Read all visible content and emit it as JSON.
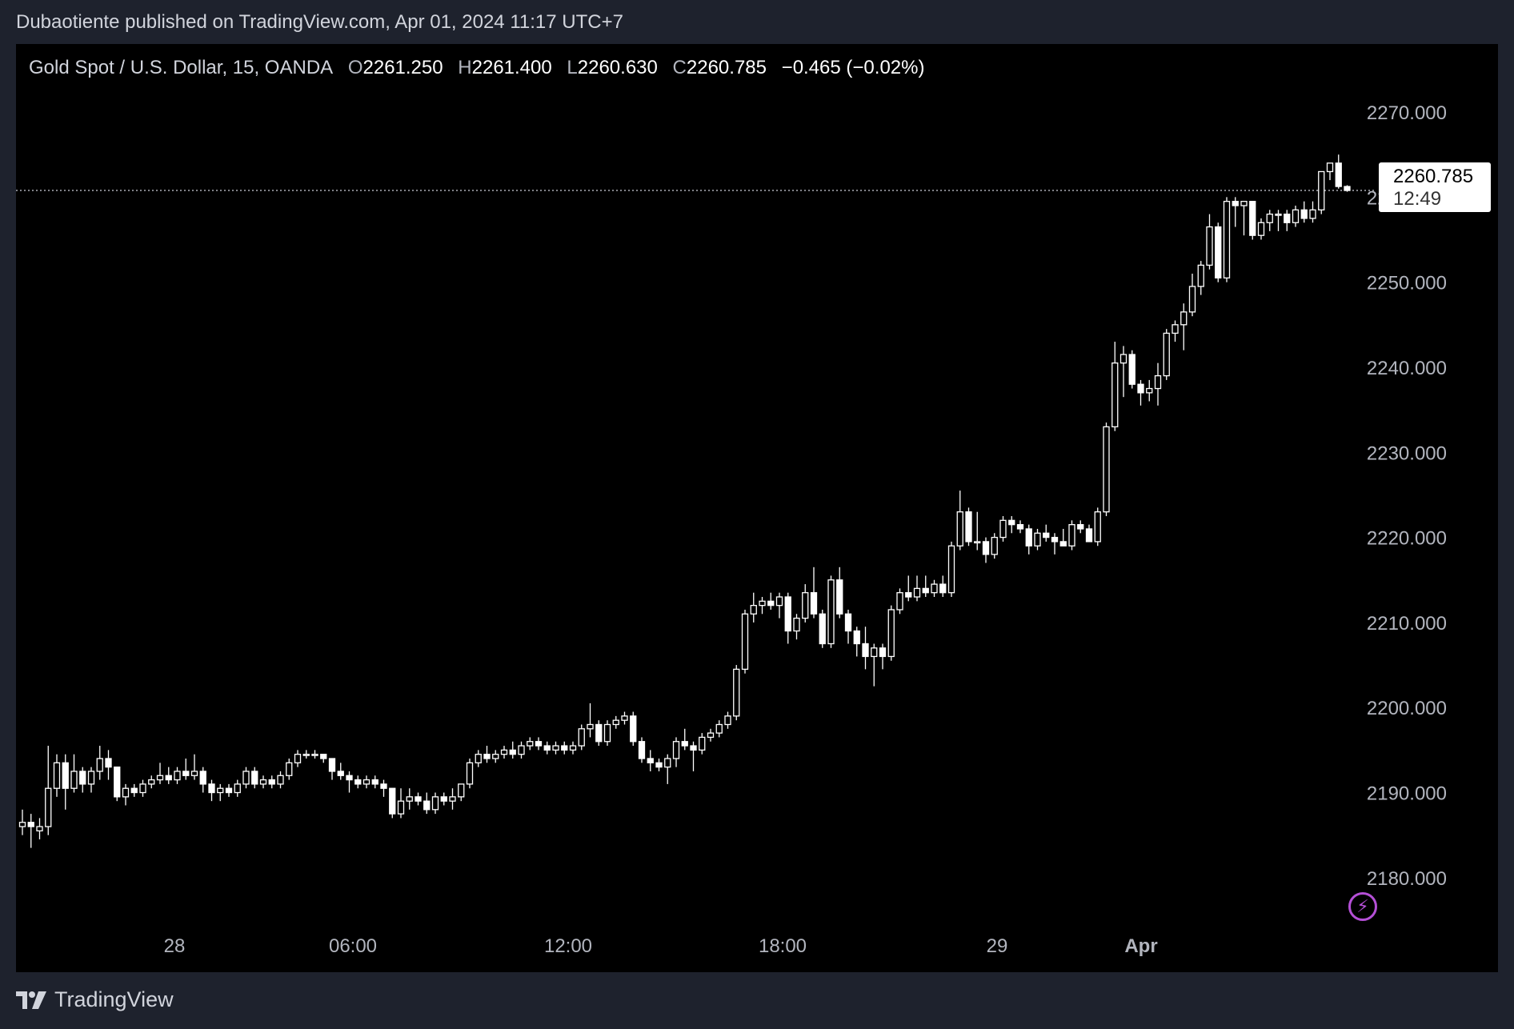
{
  "header": {
    "publish_text": "Dubaotiente published on TradingView.com, Apr 01, 2024 11:17 UTC+7"
  },
  "legend": {
    "symbol": "Gold Spot / U.S. Dollar, 15, OANDA",
    "o_label": "O",
    "o_value": "2261.250",
    "h_label": "H",
    "h_value": "2261.400",
    "l_label": "L",
    "l_value": "2260.630",
    "c_label": "C",
    "c_value": "2260.785",
    "change": "−0.465 (−0.02%)"
  },
  "price_tag": {
    "price": "2260.785",
    "countdown": "12:49"
  },
  "footer": {
    "brand": "TradingView"
  },
  "icons": {
    "alert": "lightning-bolt-icon",
    "logo": "tradingview-logo-icon"
  },
  "colors": {
    "background": "#000000",
    "frame": "#1e222d",
    "candle": "#ffffff",
    "axis_text": "#b2b5be",
    "alert_accent": "#b44fd6"
  },
  "chart_data": {
    "type": "candlestick",
    "y_ticks": [
      "2270.000",
      "2260.000",
      "2250.000",
      "2240.000",
      "2230.000",
      "2220.000",
      "2210.000",
      "2200.000",
      "2190.000",
      "2180.000"
    ],
    "x_ticks": [
      "28",
      "06:00",
      "12:00",
      "18:00",
      "29",
      "Apr"
    ],
    "ylim": [
      2175,
      2278
    ],
    "last_price": 2260.785,
    "candles": [
      [
        2186.0,
        2188.0,
        2185.0,
        2186.5
      ],
      [
        2186.5,
        2187.5,
        2183.5,
        2186.0
      ],
      [
        2185.5,
        2187.0,
        2184.5,
        2186.0
      ],
      [
        2186.0,
        2195.5,
        2185.0,
        2190.5
      ],
      [
        2190.5,
        2194.5,
        2189.5,
        2193.5
      ],
      [
        2193.5,
        2194.5,
        2188.0,
        2190.5
      ],
      [
        2190.5,
        2194.5,
        2190.0,
        2192.5
      ],
      [
        2192.5,
        2193.0,
        2190.0,
        2191.0
      ],
      [
        2191.0,
        2193.0,
        2190.0,
        2192.5
      ],
      [
        2192.5,
        2195.5,
        2191.5,
        2194.0
      ],
      [
        2194.0,
        2195.0,
        2191.5,
        2193.0
      ],
      [
        2193.0,
        2193.0,
        2189.0,
        2189.5
      ],
      [
        2189.5,
        2191.0,
        2188.5,
        2190.5
      ],
      [
        2190.5,
        2191.0,
        2189.5,
        2190.0
      ],
      [
        2190.0,
        2191.5,
        2189.5,
        2191.0
      ],
      [
        2191.0,
        2192.0,
        2190.5,
        2191.5
      ],
      [
        2191.5,
        2193.5,
        2191.0,
        2192.0
      ],
      [
        2192.0,
        2193.0,
        2191.0,
        2191.5
      ],
      [
        2191.5,
        2193.0,
        2191.0,
        2192.5
      ],
      [
        2192.5,
        2194.0,
        2191.5,
        2192.0
      ],
      [
        2192.0,
        2194.5,
        2191.5,
        2192.5
      ],
      [
        2192.5,
        2193.0,
        2190.0,
        2191.0
      ],
      [
        2191.0,
        2191.5,
        2189.0,
        2190.0
      ],
      [
        2190.0,
        2191.0,
        2189.0,
        2190.5
      ],
      [
        2190.5,
        2191.0,
        2189.5,
        2190.0
      ],
      [
        2190.0,
        2191.5,
        2189.5,
        2191.0
      ],
      [
        2191.0,
        2193.0,
        2190.5,
        2192.5
      ],
      [
        2192.5,
        2193.0,
        2190.5,
        2191.0
      ],
      [
        2191.0,
        2192.0,
        2190.5,
        2191.5
      ],
      [
        2191.5,
        2192.0,
        2190.5,
        2191.0
      ],
      [
        2191.0,
        2192.5,
        2190.5,
        2192.0
      ],
      [
        2192.0,
        2194.0,
        2191.5,
        2193.5
      ],
      [
        2193.5,
        2195.0,
        2193.0,
        2194.5
      ],
      [
        2194.5,
        2195.0,
        2194.0,
        2194.5
      ],
      [
        2194.5,
        2195.0,
        2194.0,
        2194.5
      ],
      [
        2194.5,
        2194.5,
        2193.5,
        2194.0
      ],
      [
        2194.0,
        2194.0,
        2191.5,
        2192.5
      ],
      [
        2192.5,
        2193.5,
        2191.5,
        2192.0
      ],
      [
        2192.0,
        2192.5,
        2190.0,
        2191.5
      ],
      [
        2191.5,
        2192.0,
        2190.5,
        2191.0
      ],
      [
        2191.0,
        2192.0,
        2190.5,
        2191.5
      ],
      [
        2191.5,
        2192.0,
        2190.5,
        2191.0
      ],
      [
        2191.0,
        2191.5,
        2189.5,
        2190.5
      ],
      [
        2190.5,
        2190.5,
        2187.0,
        2187.5
      ],
      [
        2187.5,
        2190.5,
        2187.0,
        2189.0
      ],
      [
        2189.0,
        2190.5,
        2188.0,
        2189.5
      ],
      [
        2189.5,
        2190.0,
        2188.5,
        2189.0
      ],
      [
        2189.0,
        2190.0,
        2187.5,
        2188.0
      ],
      [
        2188.0,
        2190.0,
        2187.5,
        2189.5
      ],
      [
        2189.5,
        2190.0,
        2188.5,
        2189.0
      ],
      [
        2189.0,
        2190.5,
        2188.0,
        2189.5
      ],
      [
        2189.5,
        2191.0,
        2189.0,
        2191.0
      ],
      [
        2191.0,
        2194.0,
        2190.5,
        2193.5
      ],
      [
        2193.5,
        2195.0,
        2193.0,
        2194.5
      ],
      [
        2194.5,
        2195.5,
        2193.5,
        2194.0
      ],
      [
        2194.0,
        2195.0,
        2193.5,
        2194.5
      ],
      [
        2194.5,
        2195.5,
        2194.0,
        2195.0
      ],
      [
        2195.0,
        2196.0,
        2194.0,
        2194.5
      ],
      [
        2194.5,
        2196.0,
        2194.0,
        2195.5
      ],
      [
        2195.5,
        2196.5,
        2195.0,
        2196.0
      ],
      [
        2196.0,
        2196.5,
        2195.0,
        2195.5
      ],
      [
        2195.5,
        2196.0,
        2194.5,
        2195.0
      ],
      [
        2195.0,
        2196.0,
        2194.5,
        2195.5
      ],
      [
        2195.5,
        2196.0,
        2194.5,
        2195.0
      ],
      [
        2195.0,
        2196.0,
        2194.5,
        2195.5
      ],
      [
        2195.5,
        2198.0,
        2195.0,
        2197.5
      ],
      [
        2197.5,
        2200.5,
        2196.5,
        2198.0
      ],
      [
        2198.0,
        2198.5,
        2195.5,
        2196.0
      ],
      [
        2196.0,
        2198.5,
        2195.5,
        2198.0
      ],
      [
        2198.0,
        2199.0,
        2197.5,
        2198.5
      ],
      [
        2198.5,
        2199.5,
        2198.0,
        2199.0
      ],
      [
        2199.0,
        2199.5,
        2195.5,
        2196.0
      ],
      [
        2196.0,
        2196.5,
        2193.5,
        2194.0
      ],
      [
        2194.0,
        2195.0,
        2192.5,
        2193.5
      ],
      [
        2193.5,
        2194.0,
        2192.5,
        2193.0
      ],
      [
        2193.0,
        2194.5,
        2191.0,
        2194.0
      ],
      [
        2194.0,
        2196.5,
        2193.0,
        2196.0
      ],
      [
        2196.0,
        2197.5,
        2195.0,
        2195.5
      ],
      [
        2195.5,
        2196.0,
        2192.5,
        2195.0
      ],
      [
        2195.0,
        2197.0,
        2194.5,
        2196.5
      ],
      [
        2196.5,
        2197.5,
        2196.0,
        2197.0
      ],
      [
        2197.0,
        2198.5,
        2196.5,
        2198.0
      ],
      [
        2198.0,
        2199.5,
        2197.5,
        2199.0
      ],
      [
        2199.0,
        2205.0,
        2198.5,
        2204.5
      ],
      [
        2204.5,
        2211.5,
        2204.0,
        2211.0
      ],
      [
        2211.0,
        2213.5,
        2210.0,
        2212.0
      ],
      [
        2212.0,
        2213.0,
        2211.0,
        2212.5
      ],
      [
        2212.5,
        2213.5,
        2211.5,
        2212.0
      ],
      [
        2212.0,
        2213.5,
        2210.5,
        2213.0
      ],
      [
        2213.0,
        2213.5,
        2207.5,
        2209.0
      ],
      [
        2209.0,
        2211.0,
        2208.0,
        2210.5
      ],
      [
        2210.5,
        2214.5,
        2210.0,
        2213.5
      ],
      [
        2213.5,
        2216.5,
        2210.5,
        2211.0
      ],
      [
        2211.0,
        2211.5,
        2207.0,
        2207.5
      ],
      [
        2207.5,
        2215.5,
        2207.0,
        2215.0
      ],
      [
        2215.0,
        2216.5,
        2210.5,
        2211.0
      ],
      [
        2211.0,
        2211.5,
        2207.5,
        2209.0
      ],
      [
        2209.0,
        2209.5,
        2206.0,
        2207.5
      ],
      [
        2207.5,
        2209.5,
        2204.5,
        2206.0
      ],
      [
        2206.0,
        2207.5,
        2202.5,
        2207.0
      ],
      [
        2207.0,
        2207.5,
        2204.5,
        2206.0
      ],
      [
        2206.0,
        2212.0,
        2205.5,
        2211.5
      ],
      [
        2211.5,
        2214.0,
        2211.0,
        2213.5
      ],
      [
        2213.5,
        2215.5,
        2212.5,
        2213.0
      ],
      [
        2213.0,
        2215.5,
        2212.5,
        2214.0
      ],
      [
        2214.0,
        2215.5,
        2213.0,
        2213.5
      ],
      [
        2213.5,
        2215.0,
        2213.0,
        2214.5
      ],
      [
        2214.5,
        2215.5,
        2213.0,
        2213.5
      ],
      [
        2213.5,
        2219.5,
        2213.0,
        2219.0
      ],
      [
        2219.0,
        2225.5,
        2218.5,
        2223.0
      ],
      [
        2223.0,
        2223.5,
        2219.0,
        2219.5
      ],
      [
        2219.5,
        2223.0,
        2218.5,
        2219.5
      ],
      [
        2219.5,
        2220.0,
        2217.0,
        2218.0
      ],
      [
        2218.0,
        2220.5,
        2217.5,
        2220.0
      ],
      [
        2220.0,
        2222.5,
        2219.5,
        2222.0
      ],
      [
        2222.0,
        2222.5,
        2220.5,
        2221.5
      ],
      [
        2221.5,
        2222.0,
        2220.5,
        2221.0
      ],
      [
        2221.0,
        2221.5,
        2218.0,
        2219.0
      ],
      [
        2219.0,
        2221.0,
        2218.5,
        2220.5
      ],
      [
        2220.5,
        2221.5,
        2219.5,
        2220.0
      ],
      [
        2220.0,
        2220.5,
        2218.0,
        2219.5
      ],
      [
        2219.5,
        2221.0,
        2219.0,
        2219.0
      ],
      [
        2219.0,
        2222.0,
        2218.5,
        2221.5
      ],
      [
        2221.5,
        2222.0,
        2220.5,
        2221.0
      ],
      [
        2221.0,
        2221.5,
        2219.5,
        2219.5
      ],
      [
        2219.5,
        2223.5,
        2219.0,
        2223.0
      ],
      [
        2223.0,
        2233.5,
        2222.5,
        2233.0
      ],
      [
        2233.0,
        2243.0,
        2232.5,
        2240.5
      ],
      [
        2240.5,
        2242.5,
        2236.5,
        2241.5
      ],
      [
        2241.5,
        2242.0,
        2237.5,
        2238.0
      ],
      [
        2238.0,
        2238.5,
        2235.5,
        2237.0
      ],
      [
        2237.0,
        2238.5,
        2236.0,
        2237.5
      ],
      [
        2237.5,
        2240.5,
        2235.5,
        2239.0
      ],
      [
        2239.0,
        2244.5,
        2238.5,
        2244.0
      ],
      [
        2244.0,
        2245.5,
        2243.0,
        2245.0
      ],
      [
        2245.0,
        2247.5,
        2242.0,
        2246.5
      ],
      [
        2246.5,
        2251.0,
        2246.0,
        2249.5
      ],
      [
        2249.5,
        2252.5,
        2248.5,
        2252.0
      ],
      [
        2252.0,
        2258.0,
        2251.5,
        2256.5
      ],
      [
        2256.5,
        2257.0,
        2250.0,
        2250.5
      ],
      [
        2250.5,
        2260.0,
        2250.0,
        2259.5
      ],
      [
        2259.5,
        2260.0,
        2256.5,
        2259.0
      ],
      [
        2259.0,
        2259.5,
        2255.5,
        2259.5
      ],
      [
        2259.5,
        2259.5,
        2255.0,
        2255.5
      ],
      [
        2255.5,
        2257.5,
        2255.0,
        2257.0
      ],
      [
        2257.0,
        2258.5,
        2256.0,
        2258.0
      ],
      [
        2258.0,
        2258.5,
        2256.0,
        2258.0
      ],
      [
        2258.0,
        2258.5,
        2256.0,
        2257.0
      ],
      [
        2257.0,
        2259.0,
        2256.5,
        2258.5
      ],
      [
        2258.5,
        2259.5,
        2257.0,
        2257.5
      ],
      [
        2257.5,
        2259.5,
        2257.0,
        2258.5
      ],
      [
        2258.5,
        2263.0,
        2258.0,
        2263.0
      ],
      [
        2263.0,
        2264.0,
        2262.0,
        2264.0
      ],
      [
        2264.0,
        2265.0,
        2261.0,
        2261.25
      ],
      [
        2261.25,
        2261.4,
        2260.63,
        2260.785
      ]
    ]
  }
}
